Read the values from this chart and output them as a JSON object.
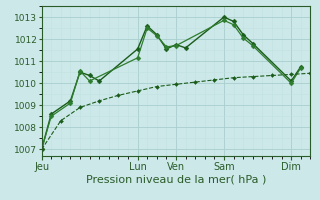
{
  "bg_color": "#cce8e8",
  "grid_color": "#aad4d4",
  "xlabel": "Pression niveau de la mer( hPa )",
  "xlabel_fontsize": 8,
  "yticks": [
    1007,
    1008,
    1009,
    1010,
    1011,
    1012,
    1013
  ],
  "ytick_fontsize": 7,
  "xtick_labels": [
    "Jeu",
    "Lun",
    "Ven",
    "Sam",
    "Dim"
  ],
  "xtick_positions": [
    0,
    10,
    14,
    19,
    26
  ],
  "x_total": 28,
  "ylim": [
    1006.7,
    1013.5
  ],
  "xlim": [
    0,
    28
  ],
  "lines": [
    {
      "x": [
        0,
        1,
        3,
        4,
        5,
        6,
        10,
        11,
        12,
        13,
        14,
        15,
        19,
        20,
        21,
        22,
        26,
        27
      ],
      "y": [
        1007.0,
        1008.6,
        1009.2,
        1010.5,
        1010.35,
        1010.1,
        1011.55,
        1012.6,
        1012.2,
        1011.55,
        1011.75,
        1011.6,
        1013.0,
        1012.8,
        1012.2,
        1011.8,
        1010.1,
        1010.75
      ],
      "style": "-",
      "marker": "D",
      "markersize": 2.5,
      "color": "#1a5c1a",
      "linewidth": 1.0
    },
    {
      "x": [
        0,
        1,
        3,
        4,
        5,
        10,
        11,
        12,
        13,
        14,
        19,
        20,
        21,
        22,
        26,
        27
      ],
      "y": [
        1007.0,
        1008.5,
        1009.1,
        1010.55,
        1010.1,
        1011.15,
        1012.5,
        1012.15,
        1011.65,
        1011.7,
        1012.85,
        1012.65,
        1012.05,
        1011.7,
        1010.0,
        1010.7
      ],
      "style": "-",
      "marker": "D",
      "markersize": 2.5,
      "color": "#2e7d2e",
      "linewidth": 0.9
    },
    {
      "x": [
        0,
        2,
        4,
        6,
        8,
        10,
        12,
        14,
        16,
        18,
        20,
        22,
        24,
        26,
        28
      ],
      "y": [
        1007.0,
        1008.3,
        1008.9,
        1009.2,
        1009.45,
        1009.65,
        1009.85,
        1009.95,
        1010.05,
        1010.15,
        1010.25,
        1010.3,
        1010.35,
        1010.4,
        1010.45
      ],
      "style": "--",
      "marker": "D",
      "markersize": 2.0,
      "color": "#1a5c1a",
      "linewidth": 0.8
    }
  ],
  "tick_color": "#2a5c2a",
  "tick_label_color": "#2a5c2a",
  "spine_color": "#2a5c2a",
  "grid_major_color": "#aacfcf",
  "grid_minor_color": "#c0e0e0"
}
